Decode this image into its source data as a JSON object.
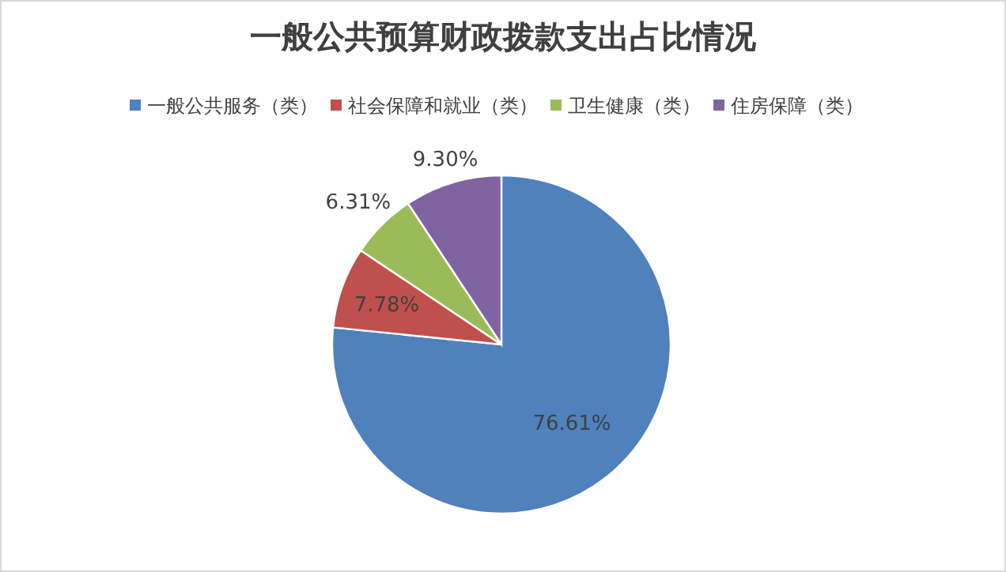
{
  "chart_data": {
    "type": "pie",
    "title": "一般公共预算财政拨款支出占比情况",
    "categories": [
      "一般公共服务（类）",
      "社会保障和就业（类）",
      "卫生健康（类）",
      "住房保障（类）"
    ],
    "values": [
      76.61,
      7.78,
      6.31,
      9.3
    ],
    "colors": [
      "#4f81bd",
      "#c0504d",
      "#9bbb59",
      "#8064a2"
    ],
    "value_labels": [
      "76.61%",
      "7.78%",
      "6.31%",
      "9.30%"
    ],
    "legend": "top"
  }
}
